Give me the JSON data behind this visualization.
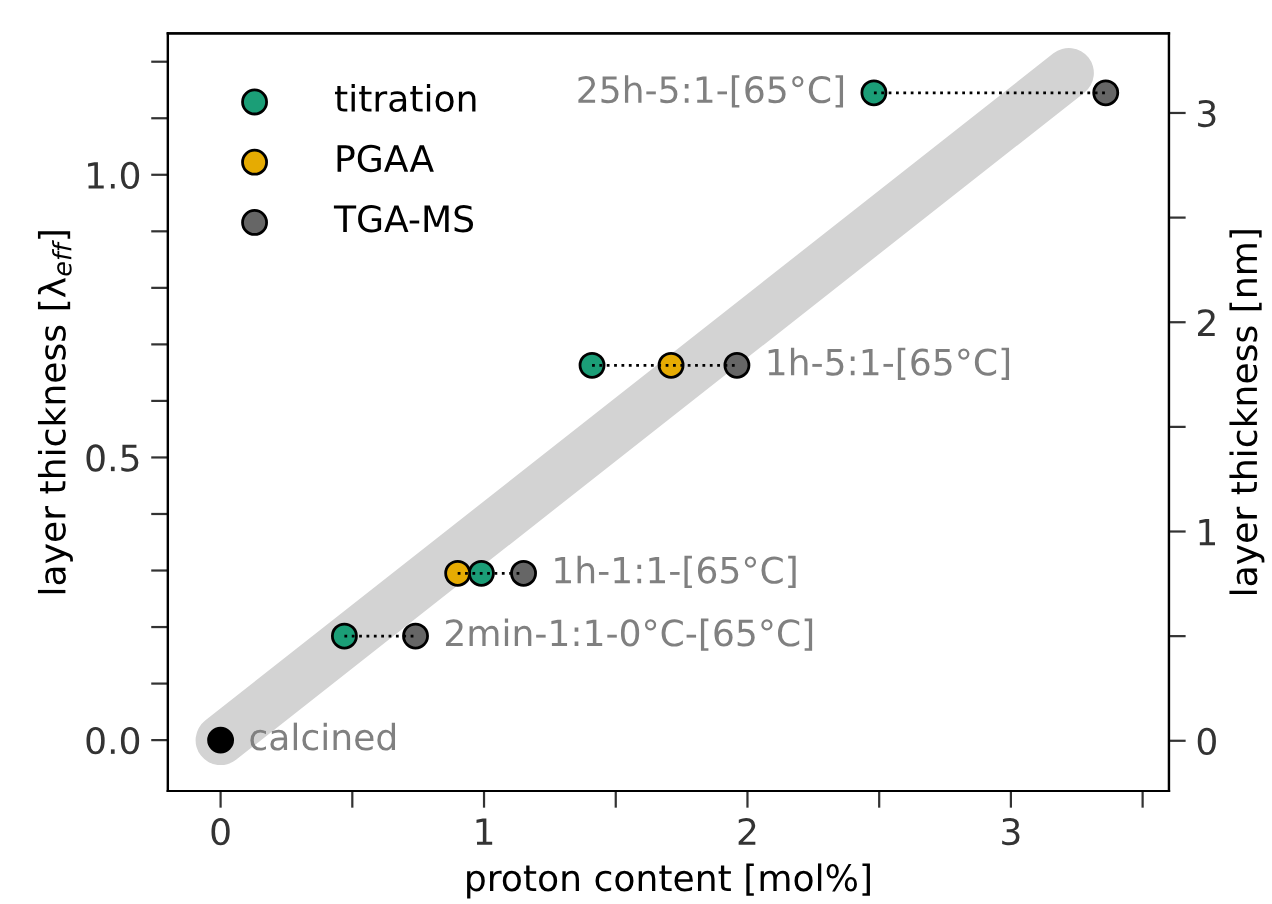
{
  "chart_data": {
    "type": "scatter",
    "xlabel": "proton content [mol%]",
    "ylabel": "layer thickness [λ$_{eff}$]",
    "y2label": "layer thickness [nm]",
    "xlim": [
      -0.2,
      3.6
    ],
    "ylim": [
      -0.09,
      1.25
    ],
    "y2lim": [
      -0.24,
      3.38
    ],
    "xticks": [
      0,
      {
        "value": 0.5,
        "label": null
      },
      1,
      {
        "value": 1.5,
        "label": null
      },
      2,
      {
        "value": 2.5,
        "label": null
      },
      3,
      {
        "value": 3.5,
        "label": null
      }
    ],
    "yticks": [
      {
        "value": 0,
        "label": "0.0"
      },
      {
        "value": 0.1,
        "label": null
      },
      {
        "value": 0.2,
        "label": null
      },
      {
        "value": 0.3,
        "label": null
      },
      {
        "value": 0.4,
        "label": null
      },
      {
        "value": 0.5,
        "label": "0.5"
      },
      {
        "value": 0.6,
        "label": null
      },
      {
        "value": 0.7,
        "label": null
      },
      {
        "value": 0.8,
        "label": null
      },
      {
        "value": 0.9,
        "label": null
      },
      {
        "value": 1.0,
        "label": "1.0"
      },
      {
        "value": 1.1,
        "label": null
      },
      {
        "value": 1.2,
        "label": null
      }
    ],
    "y2ticks": [
      0,
      {
        "value": 0.5,
        "label": null
      },
      1,
      {
        "value": 1.5,
        "label": null
      },
      2,
      {
        "value": 2.5,
        "label": null
      },
      3
    ],
    "grid": false,
    "legend": "top left",
    "marker": "circle",
    "series": [
      {
        "type": "line",
        "color": "#d3d3d3",
        "x": [
          0,
          3.22
        ],
        "values": [
          0,
          1.18
        ],
        "marker": "none",
        "line_style": "solid"
      },
      {
        "type": "line",
        "color": "#000000",
        "x": [
          0.47,
          0.74
        ],
        "values": [
          0.184,
          0.184
        ],
        "marker": "none",
        "line_style": "dotted"
      },
      {
        "type": "line",
        "color": "#000000",
        "x": [
          0.9,
          1.15
        ],
        "values": [
          0.295,
          0.295
        ],
        "marker": "none",
        "line_style": "dotted"
      },
      {
        "type": "line",
        "color": "#000000",
        "x": [
          1.41,
          1.96
        ],
        "values": [
          0.663,
          0.663
        ],
        "marker": "none",
        "line_style": "dotted"
      },
      {
        "type": "line",
        "color": "#000000",
        "x": [
          2.48,
          3.36
        ],
        "values": [
          1.145,
          1.145
        ],
        "marker": "none",
        "line_style": "dotted"
      },
      {
        "color": "#000000",
        "x": [
          0
        ],
        "values": [
          0
        ]
      },
      {
        "name": "titration",
        "color": "#1b9e77",
        "x": [
          0.47,
          0.99,
          1.41,
          2.48
        ],
        "values": [
          0.184,
          0.295,
          0.663,
          1.145
        ]
      },
      {
        "name": "PGAA",
        "color": "#e6ab02",
        "x": [
          0.9,
          1.71
        ],
        "values": [
          0.295,
          0.663
        ]
      },
      {
        "name": "TGA-MS",
        "color": "#666666",
        "x": [
          0.74,
          1.15,
          1.96,
          3.36
        ],
        "values": [
          0.184,
          0.295,
          0.663,
          1.145
        ]
      }
    ],
    "annotations": [
      {
        "text": "calcined",
        "x": 0,
        "y": 0
      },
      {
        "text": "2min-1:1-0°C-[65°C]",
        "x": 0.74,
        "y": 0.184
      },
      {
        "text": "1h-1:1-[65°C]",
        "x": 1.15,
        "y": 0.295
      },
      {
        "text": "1h-5:1-[65°C]",
        "x": 1.96,
        "y": 0.663
      },
      {
        "text": "25h-5:1-[65°C]",
        "x": 2.48,
        "y": 1.145
      }
    ]
  }
}
